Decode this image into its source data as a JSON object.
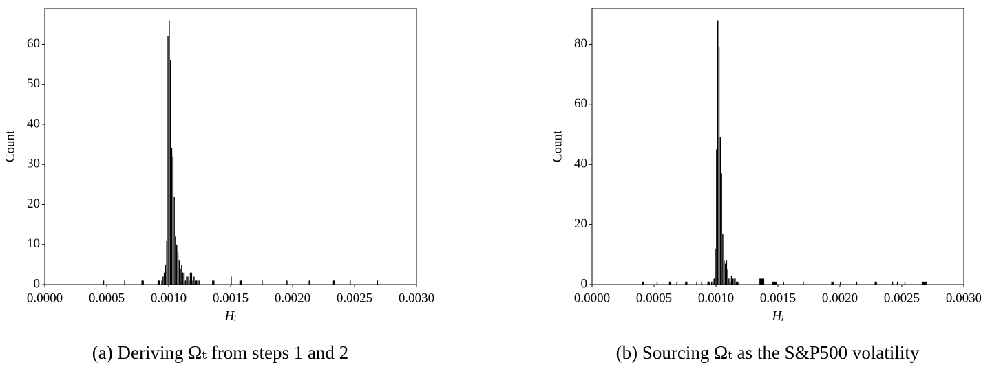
{
  "chart_data": [
    {
      "type": "histogram",
      "caption": "(a) Deriving Ωₜ from steps 1 and 2",
      "x_label": "Hᵢ",
      "y_label": "Count",
      "color": "#000000",
      "bins": [
        0,
        0.00047,
        0.00048,
        0.00064,
        0.00065,
        0.00078,
        0.0008,
        0.00091,
        0.00093,
        0.00094,
        0.00095,
        0.00096,
        0.00097,
        0.00098,
        0.00099,
        0.001,
        0.00101,
        0.00102,
        0.00103,
        0.00104,
        0.00105,
        0.00106,
        0.00107,
        0.00108,
        0.00109,
        0.0011,
        0.00111,
        0.00112,
        0.00113,
        0.00114,
        0.00115,
        0.00116,
        0.00117,
        0.00118,
        0.00119,
        0.0012,
        0.00121,
        0.00122,
        0.00123,
        0.00124,
        0.00125,
        0.00135,
        0.00137,
        0.0015,
        0.00151,
        0.00157,
        0.00159,
        0.00175,
        0.00176,
        0.00195,
        0.00196,
        0.00213,
        0.00214,
        0.00232,
        0.00234,
        0.00246,
        0.00247,
        0.00268,
        0.00269,
        0.003
      ],
      "values": [
        0,
        1,
        0,
        1,
        0,
        1,
        0,
        1,
        0,
        1,
        2,
        3,
        5,
        11,
        62,
        66,
        56,
        34,
        32,
        22,
        12,
        10,
        8,
        6,
        4,
        5,
        3,
        3,
        1,
        2,
        2,
        1,
        3,
        3,
        1,
        2,
        1,
        1,
        1,
        1,
        0,
        1,
        0,
        2,
        0,
        1,
        0,
        1,
        0,
        1,
        0,
        1,
        0,
        1,
        0,
        1,
        0,
        1,
        0
      ],
      "xlim": [
        0,
        0.003
      ],
      "ylim": [
        0,
        69
      ],
      "xticks": [
        {
          "value": 0,
          "label": "0.0000"
        },
        {
          "value": 0.0005,
          "label": "0.0005"
        },
        {
          "value": 0.001,
          "label": "0.0010"
        },
        {
          "value": 0.0015,
          "label": "0.0015"
        },
        {
          "value": 0.002,
          "label": "0.0020"
        },
        {
          "value": 0.0025,
          "label": "0.0025"
        },
        {
          "value": 0.003,
          "label": "0.0030"
        }
      ],
      "yticks": [
        0,
        10,
        20,
        30,
        40,
        50,
        60
      ]
    },
    {
      "type": "histogram",
      "caption": "(b) Sourcing Ωₜ as the S&P500 volatility",
      "x_label": "Hᵢ",
      "y_label": "Count",
      "color": "#000000",
      "bins": [
        0,
        0.0004,
        0.00042,
        0.00052,
        0.00053,
        0.00062,
        0.00064,
        0.00068,
        0.00069,
        0.00075,
        0.00077,
        0.00084,
        0.00085,
        0.00088,
        0.00089,
        0.00093,
        0.00095,
        0.00096,
        0.00097,
        0.00098,
        0.00099,
        0.001,
        0.00101,
        0.00102,
        0.00103,
        0.00104,
        0.00105,
        0.00106,
        0.00107,
        0.00108,
        0.00109,
        0.0011,
        0.00111,
        0.00112,
        0.00113,
        0.00114,
        0.00115,
        0.00116,
        0.00117,
        0.00118,
        0.00119,
        0.00135,
        0.00139,
        0.00145,
        0.00149,
        0.00154,
        0.00155,
        0.0017,
        0.00171,
        0.00193,
        0.00195,
        0.002,
        0.00201,
        0.00213,
        0.00214,
        0.00228,
        0.0023,
        0.00242,
        0.00243,
        0.00246,
        0.00247,
        0.00252,
        0.00253,
        0.00266,
        0.0027,
        0.003
      ],
      "values": [
        0,
        1,
        0,
        1,
        0,
        1,
        0,
        1,
        0,
        1,
        0,
        1,
        0,
        1,
        0,
        1,
        0,
        1,
        1,
        2,
        12,
        45,
        88,
        79,
        49,
        37,
        17,
        8,
        7,
        8,
        5,
        2,
        1,
        3,
        2,
        2,
        2,
        1,
        1,
        1,
        0,
        2,
        0,
        1,
        0,
        1,
        0,
        1,
        0,
        1,
        0,
        1,
        0,
        1,
        0,
        1,
        0,
        1,
        0,
        1,
        0,
        1,
        0,
        1,
        0
      ],
      "xlim": [
        0,
        0.003
      ],
      "ylim": [
        0,
        92
      ],
      "xticks": [
        {
          "value": 0,
          "label": "0.0000"
        },
        {
          "value": 0.0005,
          "label": "0.0005"
        },
        {
          "value": 0.001,
          "label": "0.0010"
        },
        {
          "value": 0.0015,
          "label": "0.0015"
        },
        {
          "value": 0.002,
          "label": "0.0020"
        },
        {
          "value": 0.0025,
          "label": "0.0025"
        },
        {
          "value": 0.003,
          "label": "0.0030"
        }
      ],
      "yticks": [
        0,
        20,
        40,
        60,
        80
      ]
    }
  ]
}
